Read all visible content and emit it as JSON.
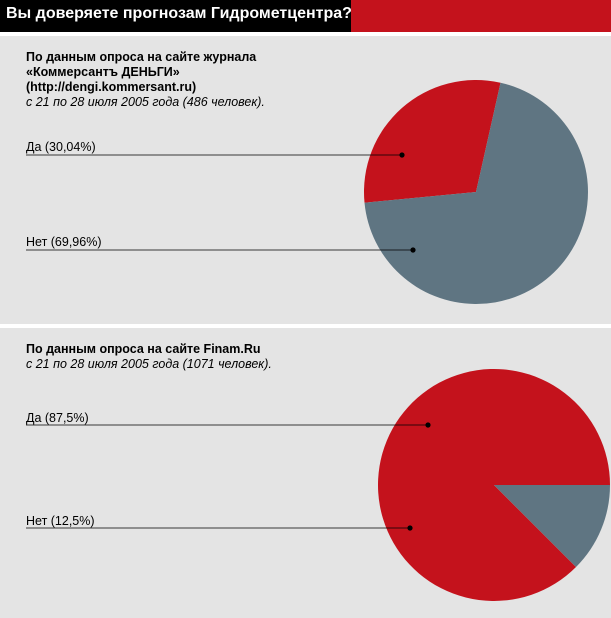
{
  "header": {
    "title": "Вы доверяете прогнозам Гидрометцентра?"
  },
  "colors": {
    "red": "#c4121c",
    "slate": "#5f7582",
    "panel": "#e4e4e4",
    "line": "#000000"
  },
  "chart_data": [
    {
      "type": "pie",
      "source_lines_bold": [
        "По данным опроса на сайте журнала",
        "«Коммерсантъ ДЕНЬГИ»",
        "(http://dengi.kommersant.ru)"
      ],
      "source_line_italic": "с 21 по 28 июля 2005 года (486 человек).",
      "labels": [
        "Да (30,04%)",
        "Нет (69,96%)"
      ],
      "values": [
        30.04,
        69.96
      ],
      "slice_colors": [
        "#c4121c",
        "#5f7582"
      ]
    },
    {
      "type": "pie",
      "source_lines_bold": [
        "По данным опроса на сайте Finam.Ru"
      ],
      "source_line_italic": "с 21 по 28 июля 2005 года (1071 человек).",
      "labels": [
        "Да (87,5%)",
        "Нет (12,5%)"
      ],
      "values": [
        87.5,
        12.5
      ],
      "slice_colors": [
        "#c4121c",
        "#5f7582"
      ]
    }
  ]
}
